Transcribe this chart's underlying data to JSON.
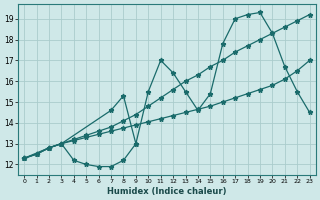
{
  "xlabel": "Humidex (Indice chaleur)",
  "bg_color": "#cfe8e8",
  "grid_color": "#b8d8d8",
  "line_color": "#1a6b6b",
  "xlim": [
    -0.5,
    23.5
  ],
  "ylim": [
    11.5,
    19.7
  ],
  "xticks": [
    0,
    1,
    2,
    3,
    4,
    5,
    6,
    7,
    8,
    9,
    10,
    11,
    12,
    13,
    14,
    15,
    16,
    17,
    18,
    19,
    20,
    21,
    22,
    23
  ],
  "yticks": [
    12,
    13,
    14,
    15,
    16,
    17,
    18,
    19
  ],
  "s1x": [
    0,
    1,
    2,
    3,
    4,
    5,
    6,
    7,
    8,
    9
  ],
  "s1y": [
    12.3,
    12.5,
    12.8,
    13.0,
    12.2,
    12.0,
    11.9,
    11.9,
    12.2,
    13.0
  ],
  "s2x": [
    0,
    1,
    2,
    3,
    4,
    5,
    6,
    7,
    8,
    9,
    10,
    11,
    12,
    13,
    14,
    15,
    16,
    17,
    18,
    19,
    20,
    21,
    22,
    23
  ],
  "s2y": [
    12.3,
    12.5,
    12.8,
    13.0,
    13.15,
    13.3,
    13.45,
    13.6,
    13.75,
    13.9,
    14.05,
    14.2,
    14.35,
    14.5,
    14.65,
    14.8,
    15.0,
    15.2,
    15.4,
    15.6,
    15.8,
    16.1,
    16.5,
    17.0
  ],
  "s3x": [
    0,
    1,
    2,
    3,
    4,
    5,
    6,
    7,
    8,
    9,
    10,
    11,
    12,
    13,
    14,
    15,
    16,
    17,
    18,
    19,
    20,
    21,
    22,
    23
  ],
  "s3y": [
    12.3,
    12.5,
    12.8,
    13.0,
    13.2,
    13.4,
    13.6,
    13.8,
    14.1,
    14.4,
    14.8,
    15.2,
    15.6,
    16.0,
    16.3,
    16.7,
    17.0,
    17.4,
    17.7,
    18.0,
    18.3,
    18.6,
    18.9,
    19.2
  ],
  "s4x": [
    0,
    2,
    3,
    7,
    8,
    9,
    10,
    11,
    12,
    13,
    14,
    15,
    16,
    17,
    18,
    19,
    20,
    21,
    22,
    23
  ],
  "s4y": [
    12.3,
    12.8,
    13.0,
    14.6,
    15.3,
    13.0,
    15.5,
    17.0,
    16.4,
    15.5,
    14.6,
    15.4,
    17.8,
    19.0,
    19.2,
    19.3,
    18.3,
    16.7,
    15.5,
    14.5
  ]
}
